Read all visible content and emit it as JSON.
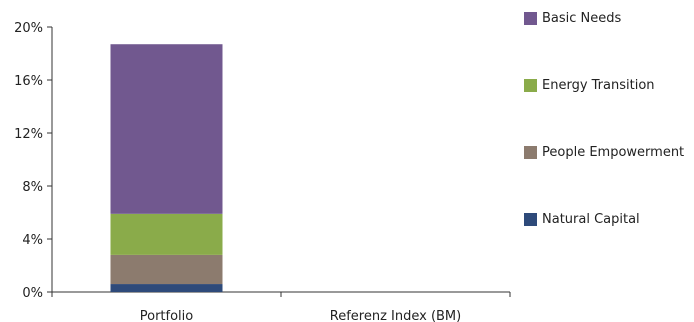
{
  "chart_data": {
    "type": "bar",
    "stacked": true,
    "categories": [
      "Portfolio",
      "Referenz Index (BM)"
    ],
    "series": [
      {
        "name": "Natural Capital",
        "color": "#2e4a7a",
        "values": [
          0.6,
          0
        ]
      },
      {
        "name": "People Empowerment",
        "color": "#8c7b6e",
        "values": [
          2.2,
          0
        ]
      },
      {
        "name": "Energy Transition",
        "color": "#8aab4a",
        "values": [
          3.1,
          0
        ]
      },
      {
        "name": "Basic Needs",
        "color": "#71588f",
        "values": [
          12.8,
          0
        ]
      }
    ],
    "legend_order": [
      "Basic Needs",
      "Energy Transition",
      "People Empowerment",
      "Natural Capital"
    ],
    "ylim": [
      0,
      20
    ],
    "yticks": [
      "0%",
      "4%",
      "8%",
      "12%",
      "16%",
      "20%"
    ],
    "ytick_values": [
      0,
      4,
      8,
      12,
      16,
      20
    ],
    "title": "",
    "xlabel": "",
    "ylabel": "",
    "legend_position": "right",
    "grid": false
  }
}
